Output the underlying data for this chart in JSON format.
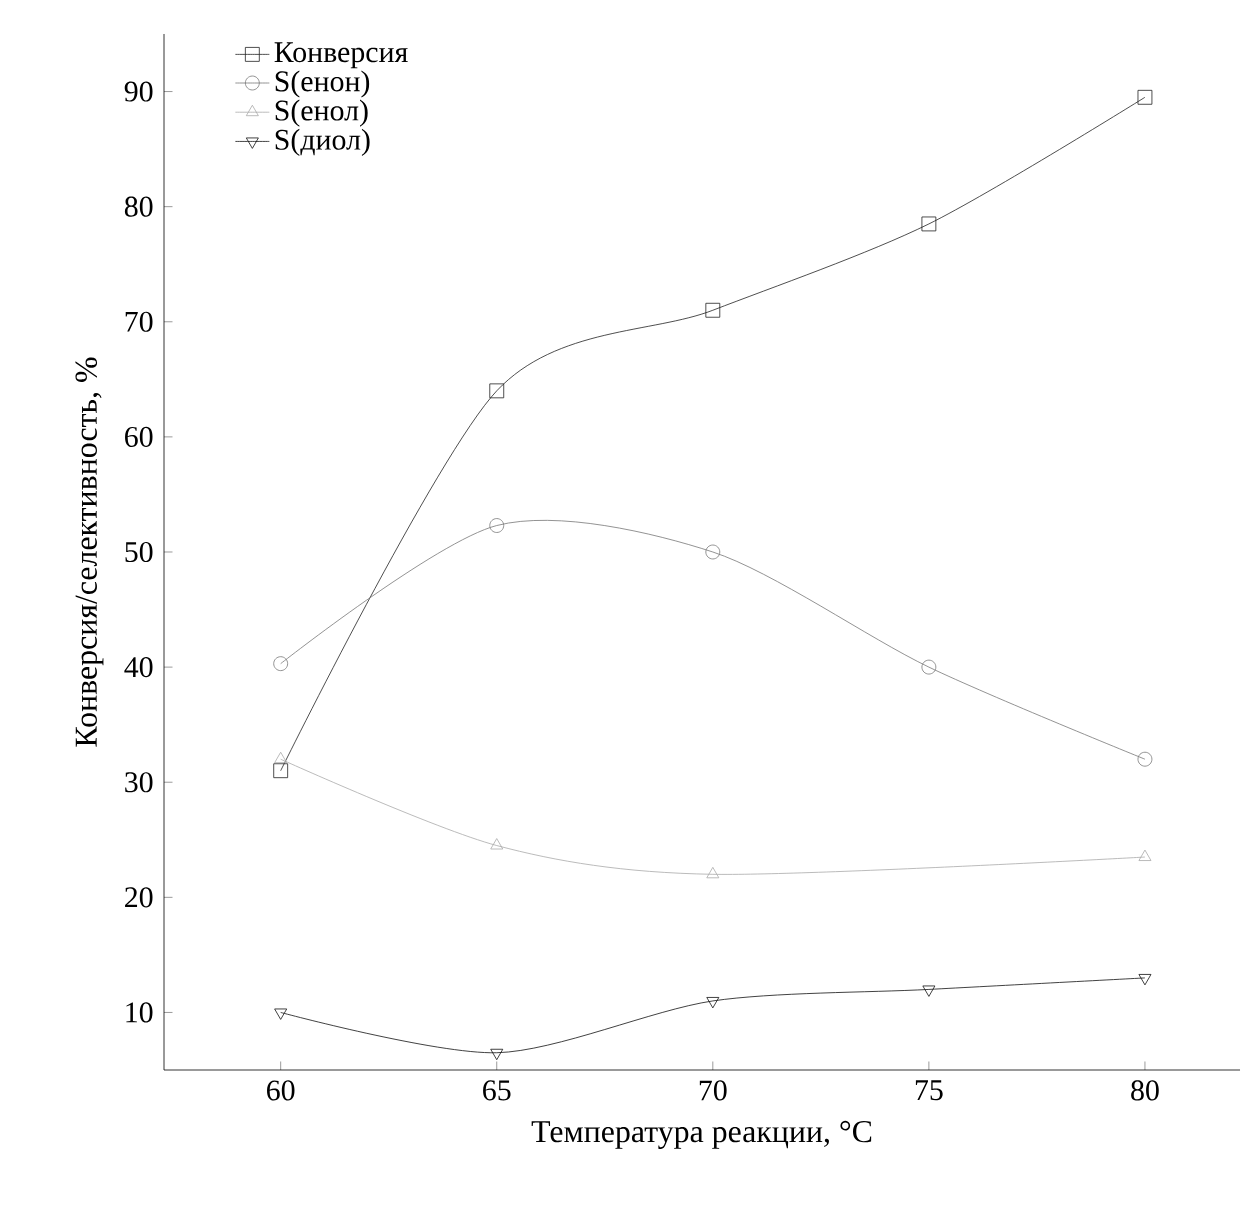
{
  "chart_data": {
    "type": "line",
    "xlabel": "Температура реакции, °C",
    "ylabel": "Конверсия/селективность, %",
    "x": [
      60,
      65,
      70,
      75,
      80
    ],
    "series": [
      {
        "name": "Конверсия",
        "color": "#222222",
        "marker": "square",
        "values": [
          31,
          64,
          71,
          78.5,
          89.5
        ]
      },
      {
        "name": "S(енон)",
        "color": "#777777",
        "marker": "circle",
        "values": [
          40.3,
          52.3,
          50,
          40,
          32
        ]
      },
      {
        "name": "S(енол)",
        "color": "#aaaaaa",
        "marker": "triangle",
        "values": [
          32,
          24.5,
          22,
          null,
          23.5
        ]
      },
      {
        "name": "S(диол)",
        "color": "#111111",
        "marker": "triangle-down",
        "values": [
          10,
          6.5,
          11,
          12,
          13
        ]
      }
    ],
    "xlim": [
      57.3,
      82.2
    ],
    "ylim": [
      5,
      95
    ],
    "xticks": [
      60,
      65,
      70,
      75,
      80
    ],
    "yticks": [
      10,
      20,
      30,
      40,
      50,
      60,
      70,
      80,
      90
    ],
    "legend": "top left",
    "grid": false,
    "line_style": "solid"
  }
}
